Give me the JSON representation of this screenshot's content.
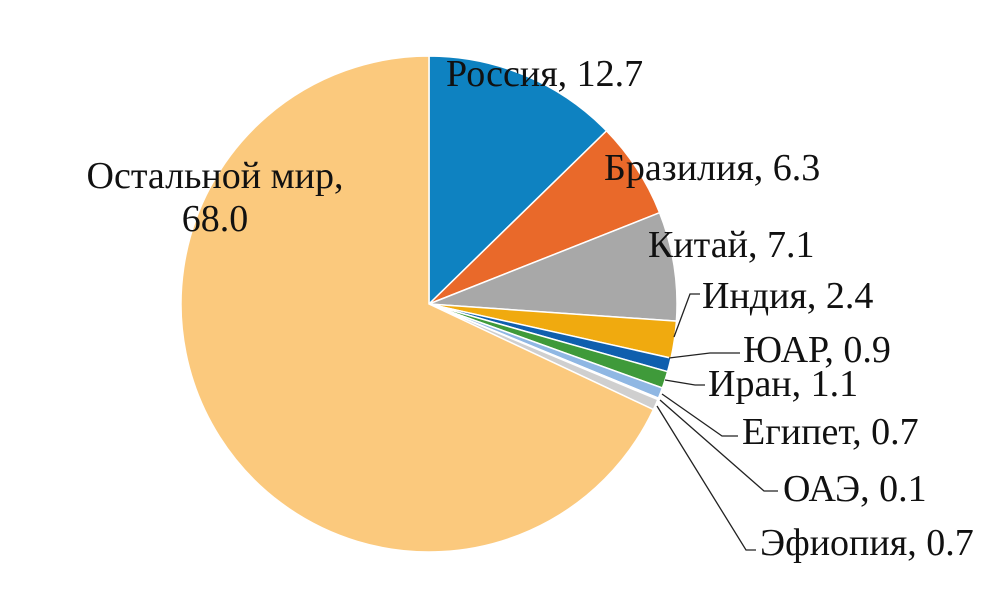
{
  "chart_data": {
    "type": "pie",
    "title": "",
    "start_angle_deg": 0,
    "direction": "clockwise",
    "slices": [
      {
        "label": "Россия, 12.7",
        "name": "Россия",
        "value": 12.7,
        "color": "#0E82C1"
      },
      {
        "label": "Бразилия, 6.3",
        "name": "Бразилия",
        "value": 6.3,
        "color": "#E9692A"
      },
      {
        "label": "Китай, 7.1",
        "name": "Китай",
        "value": 7.1,
        "color": "#A8A8A8"
      },
      {
        "label": "Индия, 2.4",
        "name": "Индия",
        "value": 2.4,
        "color": "#F0AA0F"
      },
      {
        "label": "ЮАР, 0.9",
        "name": "ЮАР",
        "value": 0.9,
        "color": "#0F5FAE"
      },
      {
        "label": "Иран, 1.1",
        "name": "Иран",
        "value": 1.1,
        "color": "#3F9A3A"
      },
      {
        "label": "Египет, 0.7",
        "name": "Египет",
        "value": 0.7,
        "color": "#8FB7E3"
      },
      {
        "label": "ОАЭ, 0.1",
        "name": "ОАЭ",
        "value": 0.1,
        "color": "#3C5F9A"
      },
      {
        "label": "Эфиопия, 0.7",
        "name": "Эфиопия",
        "value": 0.7,
        "color": "#CFCFCF"
      },
      {
        "label_lines": [
          "Остальной мир,",
          "68.0"
        ],
        "name": "Остальной мир",
        "value": 68.0,
        "color": "#FBC97D"
      }
    ]
  }
}
